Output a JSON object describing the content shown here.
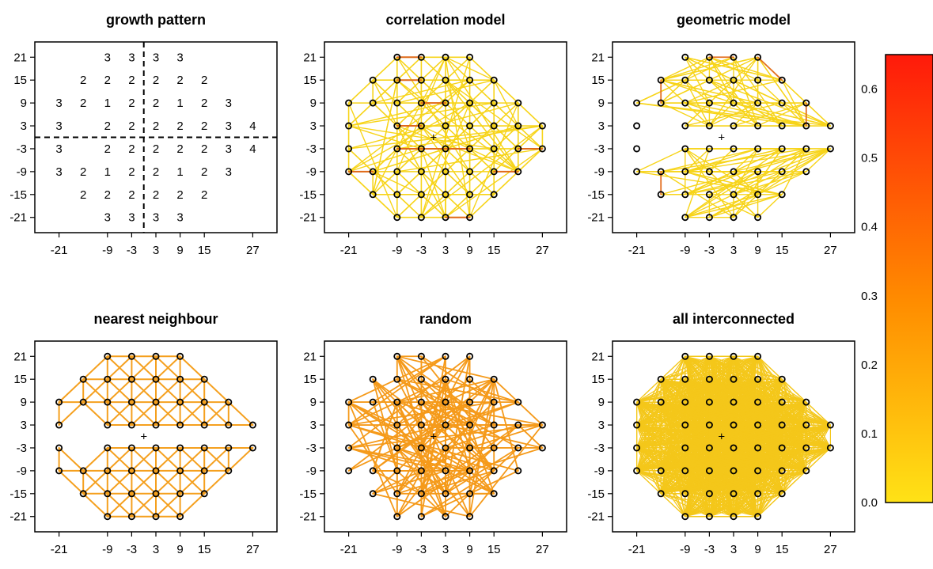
{
  "colors": {
    "nearest_neighbour_edge": "#f5a01e",
    "random_edge": "#f59a1a",
    "all_interconnected_fill": "#f4c71a",
    "correlation_main_edge": "#f7d419",
    "correlation_strong_edge": "#e06a1a",
    "geometric_main_edge": "#f7d419",
    "geometric_strong_edge": "#e37022",
    "colorbar_low": "#ffe216",
    "colorbar_mid": "#ff8c00",
    "colorbar_high": "#ff1a0a",
    "marker": "#000000"
  },
  "chart_data": [
    {
      "type": "table",
      "title": "growth pattern",
      "x_ticks": [
        -21,
        -9,
        -3,
        3,
        9,
        15,
        27
      ],
      "y_ticks": [
        21,
        15,
        9,
        3,
        -3,
        -9,
        -15,
        -21
      ],
      "xlim": [
        -27,
        33
      ],
      "ylim": [
        -25,
        25
      ],
      "dashed_lines": {
        "vertical_x": 0,
        "horizontal_y": 0
      },
      "cells": [
        {
          "x": -9,
          "y": 21,
          "value": 3
        },
        {
          "x": -3,
          "y": 21,
          "value": 3
        },
        {
          "x": 3,
          "y": 21,
          "value": 3
        },
        {
          "x": 9,
          "y": 21,
          "value": 3
        },
        {
          "x": -15,
          "y": 15,
          "value": 2
        },
        {
          "x": -9,
          "y": 15,
          "value": 2
        },
        {
          "x": -3,
          "y": 15,
          "value": 2
        },
        {
          "x": 3,
          "y": 15,
          "value": 2
        },
        {
          "x": 9,
          "y": 15,
          "value": 2
        },
        {
          "x": 15,
          "y": 15,
          "value": 2
        },
        {
          "x": -21,
          "y": 9,
          "value": 3
        },
        {
          "x": -15,
          "y": 9,
          "value": 2
        },
        {
          "x": -9,
          "y": 9,
          "value": 1
        },
        {
          "x": -3,
          "y": 9,
          "value": 2
        },
        {
          "x": 3,
          "y": 9,
          "value": 2
        },
        {
          "x": 9,
          "y": 9,
          "value": 1
        },
        {
          "x": 15,
          "y": 9,
          "value": 2
        },
        {
          "x": 21,
          "y": 9,
          "value": 3
        },
        {
          "x": -21,
          "y": 3,
          "value": 3
        },
        {
          "x": -9,
          "y": 3,
          "value": 2
        },
        {
          "x": -3,
          "y": 3,
          "value": 2
        },
        {
          "x": 3,
          "y": 3,
          "value": 2
        },
        {
          "x": 9,
          "y": 3,
          "value": 2
        },
        {
          "x": 15,
          "y": 3,
          "value": 2
        },
        {
          "x": 21,
          "y": 3,
          "value": 3
        },
        {
          "x": 27,
          "y": 3,
          "value": 4
        },
        {
          "x": -21,
          "y": -3,
          "value": 3
        },
        {
          "x": -9,
          "y": -3,
          "value": 2
        },
        {
          "x": -3,
          "y": -3,
          "value": 2
        },
        {
          "x": 3,
          "y": -3,
          "value": 2
        },
        {
          "x": 9,
          "y": -3,
          "value": 2
        },
        {
          "x": 15,
          "y": -3,
          "value": 2
        },
        {
          "x": 21,
          "y": -3,
          "value": 3
        },
        {
          "x": 27,
          "y": -3,
          "value": 4
        },
        {
          "x": -21,
          "y": -9,
          "value": 3
        },
        {
          "x": -15,
          "y": -9,
          "value": 2
        },
        {
          "x": -9,
          "y": -9,
          "value": 1
        },
        {
          "x": -3,
          "y": -9,
          "value": 2
        },
        {
          "x": 3,
          "y": -9,
          "value": 2
        },
        {
          "x": 9,
          "y": -9,
          "value": 1
        },
        {
          "x": 15,
          "y": -9,
          "value": 2
        },
        {
          "x": 21,
          "y": -9,
          "value": 3
        },
        {
          "x": -15,
          "y": -15,
          "value": 2
        },
        {
          "x": -9,
          "y": -15,
          "value": 2
        },
        {
          "x": -3,
          "y": -15,
          "value": 2
        },
        {
          "x": 3,
          "y": -15,
          "value": 2
        },
        {
          "x": 9,
          "y": -15,
          "value": 2
        },
        {
          "x": 15,
          "y": -15,
          "value": 2
        },
        {
          "x": -9,
          "y": -21,
          "value": 3
        },
        {
          "x": -3,
          "y": -21,
          "value": 3
        },
        {
          "x": 3,
          "y": -21,
          "value": 3
        },
        {
          "x": 9,
          "y": -21,
          "value": 3
        }
      ]
    },
    {
      "type": "scatter",
      "title": "correlation model",
      "network": "correlation",
      "x_ticks": [
        -21,
        -9,
        -3,
        3,
        9,
        15,
        27
      ],
      "y_ticks": [
        21,
        15,
        9,
        3,
        -3,
        -9,
        -15,
        -21
      ],
      "xlim": [
        -27,
        33
      ],
      "ylim": [
        -25,
        25
      ],
      "center_marker": {
        "x": 0,
        "y": 0,
        "symbol": "+"
      }
    },
    {
      "type": "scatter",
      "title": "geometric model",
      "network": "geometric",
      "x_ticks": [
        -21,
        -9,
        -3,
        3,
        9,
        15,
        27
      ],
      "y_ticks": [
        21,
        15,
        9,
        3,
        -3,
        -9,
        -15,
        -21
      ],
      "xlim": [
        -27,
        33
      ],
      "ylim": [
        -25,
        25
      ],
      "center_marker": {
        "x": 0,
        "y": 0,
        "symbol": "+"
      }
    },
    {
      "type": "scatter",
      "title": "nearest neighbour",
      "network": "nearest",
      "x_ticks": [
        -21,
        -9,
        -3,
        3,
        9,
        15,
        27
      ],
      "y_ticks": [
        21,
        15,
        9,
        3,
        -3,
        -9,
        -15,
        -21
      ],
      "xlim": [
        -27,
        33
      ],
      "ylim": [
        -25,
        25
      ],
      "center_marker": {
        "x": 0,
        "y": 0,
        "symbol": "+"
      }
    },
    {
      "type": "scatter",
      "title": "random",
      "network": "random",
      "x_ticks": [
        -21,
        -9,
        -3,
        3,
        9,
        15,
        27
      ],
      "y_ticks": [
        21,
        15,
        9,
        3,
        -3,
        -9,
        -15,
        -21
      ],
      "xlim": [
        -27,
        33
      ],
      "ylim": [
        -25,
        25
      ],
      "center_marker": {
        "x": 0,
        "y": 0,
        "symbol": "+"
      }
    },
    {
      "type": "scatter",
      "title": "all interconnected",
      "network": "all",
      "x_ticks": [
        -21,
        -9,
        -3,
        3,
        9,
        15,
        27
      ],
      "y_ticks": [
        21,
        15,
        9,
        3,
        -3,
        -9,
        -15,
        -21
      ],
      "xlim": [
        -27,
        33
      ],
      "ylim": [
        -25,
        25
      ],
      "center_marker": {
        "x": 0,
        "y": 0,
        "symbol": "+"
      }
    },
    {
      "type": "heatmap",
      "role": "colorbar",
      "range": [
        0.0,
        0.65
      ],
      "ticks": [
        0.0,
        0.1,
        0.2,
        0.3,
        0.4,
        0.5,
        0.6
      ],
      "tick_labels": [
        "0.0",
        "0.1",
        "0.2",
        "0.3",
        "0.4",
        "0.5",
        "0.6"
      ]
    }
  ],
  "points": [
    [
      -9,
      21
    ],
    [
      -3,
      21
    ],
    [
      3,
      21
    ],
    [
      9,
      21
    ],
    [
      -15,
      15
    ],
    [
      -9,
      15
    ],
    [
      -3,
      15
    ],
    [
      3,
      15
    ],
    [
      9,
      15
    ],
    [
      15,
      15
    ],
    [
      -21,
      9
    ],
    [
      -15,
      9
    ],
    [
      -9,
      9
    ],
    [
      -3,
      9
    ],
    [
      3,
      9
    ],
    [
      9,
      9
    ],
    [
      15,
      9
    ],
    [
      21,
      9
    ],
    [
      -21,
      3
    ],
    [
      -9,
      3
    ],
    [
      -3,
      3
    ],
    [
      3,
      3
    ],
    [
      9,
      3
    ],
    [
      15,
      3
    ],
    [
      21,
      3
    ],
    [
      27,
      3
    ],
    [
      -21,
      -3
    ],
    [
      -9,
      -3
    ],
    [
      -3,
      -3
    ],
    [
      3,
      -3
    ],
    [
      9,
      -3
    ],
    [
      15,
      -3
    ],
    [
      21,
      -3
    ],
    [
      27,
      -3
    ],
    [
      -21,
      -9
    ],
    [
      -15,
      -9
    ],
    [
      -9,
      -9
    ],
    [
      -3,
      -9
    ],
    [
      3,
      -9
    ],
    [
      9,
      -9
    ],
    [
      15,
      -9
    ],
    [
      21,
      -9
    ],
    [
      -15,
      -15
    ],
    [
      -9,
      -15
    ],
    [
      -3,
      -15
    ],
    [
      3,
      -15
    ],
    [
      9,
      -15
    ],
    [
      15,
      -15
    ],
    [
      -9,
      -21
    ],
    [
      -3,
      -21
    ],
    [
      3,
      -21
    ],
    [
      9,
      -21
    ]
  ]
}
